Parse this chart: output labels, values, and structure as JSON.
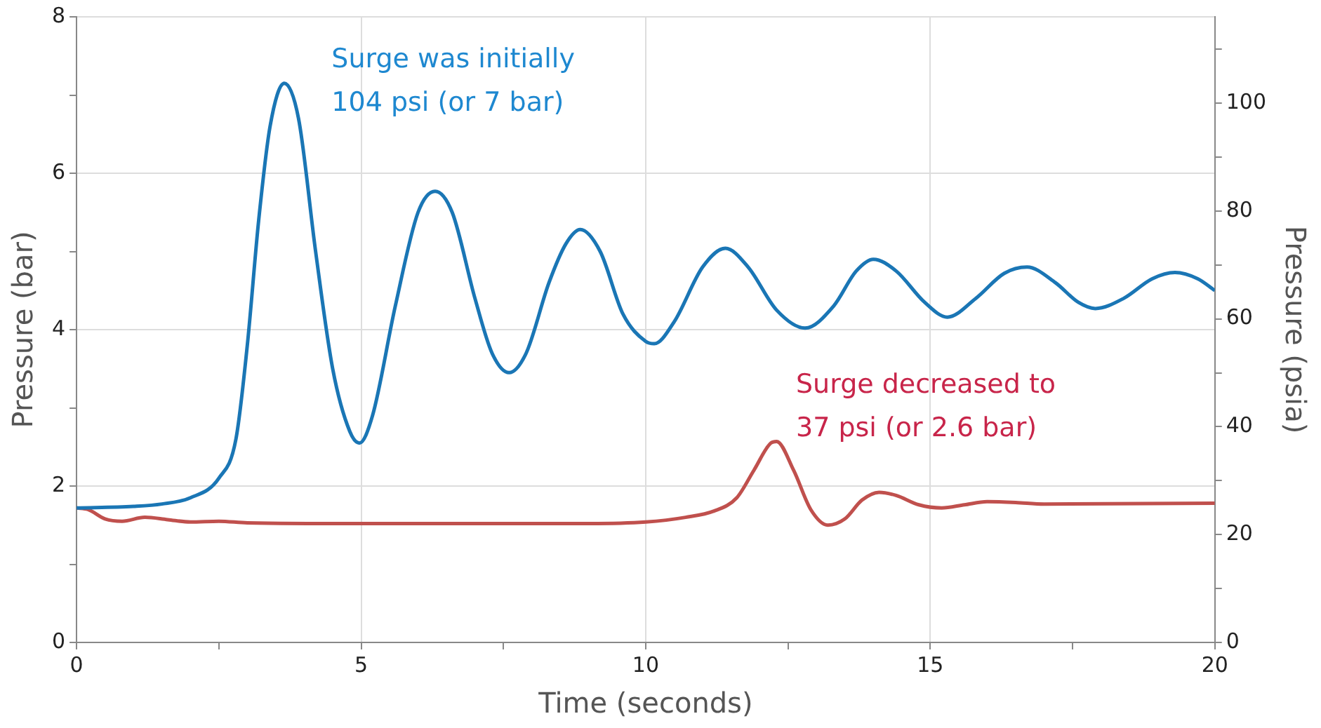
{
  "chart_data": {
    "type": "line",
    "xlabel": "Time (seconds)",
    "ylabel": "Pressure (bar)",
    "y2label": "Pressure (psia)",
    "xlim": [
      0,
      20
    ],
    "xticks": [
      0,
      {
        "value": 2.5,
        "label": null
      },
      5,
      {
        "value": 7.5,
        "label": null
      },
      10,
      {
        "value": 12.5,
        "label": null
      },
      15,
      {
        "value": 17.5,
        "label": null
      },
      20
    ],
    "ylim": [
      0,
      8
    ],
    "yticks": [
      0,
      {
        "value": 1,
        "label": null
      },
      2,
      {
        "value": 3,
        "label": null
      },
      4,
      {
        "value": 5,
        "label": null
      },
      6,
      {
        "value": 7,
        "label": null
      },
      8
    ],
    "y2lim": [
      0,
      116
    ],
    "y2ticks": [
      0,
      {
        "value": 10,
        "label": null
      },
      20,
      {
        "value": 30,
        "label": null
      },
      40,
      {
        "value": 50,
        "label": null
      },
      60,
      {
        "value": 70,
        "label": null
      },
      80,
      {
        "value": 90,
        "label": null
      },
      100,
      {
        "value": 110,
        "label": null
      }
    ],
    "grid": true,
    "legend": false,
    "marker": "none",
    "line_style": "solid",
    "annotations": [
      "Surge was initially\n104 psi (or 7 bar)",
      "Surge decreased to\n37 psi (or 2.6 bar)"
    ],
    "series": [
      {
        "color": "#1a76b5",
        "x": [
          0,
          1,
          1.5,
          2,
          2.5,
          2.8,
          3.0,
          3.2,
          3.4,
          3.65,
          3.9,
          4.2,
          4.5,
          4.8,
          4.97,
          5.2,
          5.6,
          6.0,
          6.3,
          6.6,
          7.0,
          7.3,
          7.6,
          7.9,
          8.3,
          8.6,
          8.85,
          9.2,
          9.6,
          10.0,
          10.15,
          10.5,
          11.0,
          11.4,
          11.8,
          12.3,
          12.8,
          13.3,
          13.7,
          14.0,
          14.4,
          14.9,
          15.3,
          15.8,
          16.3,
          16.7,
          17.2,
          17.6,
          17.9,
          18.4,
          18.9,
          19.3,
          19.7,
          20
        ],
        "values": [
          1.72,
          1.74,
          1.77,
          1.85,
          2.1,
          2.6,
          3.8,
          5.4,
          6.6,
          7.15,
          6.7,
          5.0,
          3.5,
          2.7,
          2.55,
          2.9,
          4.3,
          5.5,
          5.77,
          5.5,
          4.4,
          3.7,
          3.45,
          3.7,
          4.6,
          5.1,
          5.28,
          5.0,
          4.2,
          3.85,
          3.82,
          4.1,
          4.8,
          5.04,
          4.8,
          4.25,
          4.02,
          4.3,
          4.75,
          4.9,
          4.75,
          4.35,
          4.16,
          4.4,
          4.72,
          4.8,
          4.6,
          4.35,
          4.27,
          4.4,
          4.65,
          4.73,
          4.65,
          4.5
        ]
      },
      {
        "color": "#c0504d",
        "x": [
          0,
          0.2,
          0.5,
          0.8,
          1.2,
          1.6,
          2.0,
          2.5,
          3,
          5,
          9,
          10,
          10.7,
          11.2,
          11.6,
          11.9,
          12.2,
          12.3,
          12.6,
          12.9,
          13.2,
          13.5,
          13.8,
          14.1,
          14.4,
          14.8,
          15.2,
          15.6,
          16.0,
          16.5,
          17,
          20
        ],
        "values": [
          1.72,
          1.7,
          1.58,
          1.55,
          1.6,
          1.57,
          1.54,
          1.55,
          1.53,
          1.52,
          1.52,
          1.54,
          1.6,
          1.68,
          1.85,
          2.2,
          2.55,
          2.57,
          2.2,
          1.7,
          1.5,
          1.58,
          1.82,
          1.92,
          1.88,
          1.76,
          1.72,
          1.76,
          1.8,
          1.79,
          1.77,
          1.78
        ]
      }
    ]
  }
}
